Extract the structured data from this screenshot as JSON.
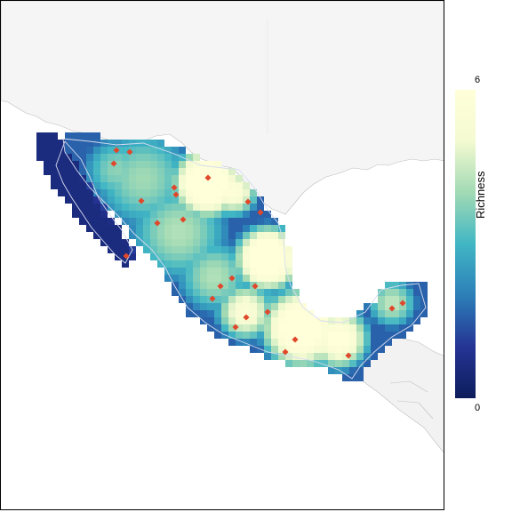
{
  "legend": {
    "title": "Richness",
    "min_label": "0",
    "max_label": "6",
    "min": 0,
    "max": 6,
    "colors": [
      "#0d1d5c",
      "#253494",
      "#2c7fb8",
      "#41b6c4",
      "#a1dab4",
      "#f4fad1",
      "#ffffd9"
    ]
  },
  "colors": {
    "background": "#ffffff",
    "land": "#f2f2f2",
    "land_border": "#bdbdbd",
    "country_outline": "#c7d0ea",
    "occurrence_point": "#e0472b"
  },
  "map": {
    "region": "Mexico",
    "occurrence_count": 24
  }
}
